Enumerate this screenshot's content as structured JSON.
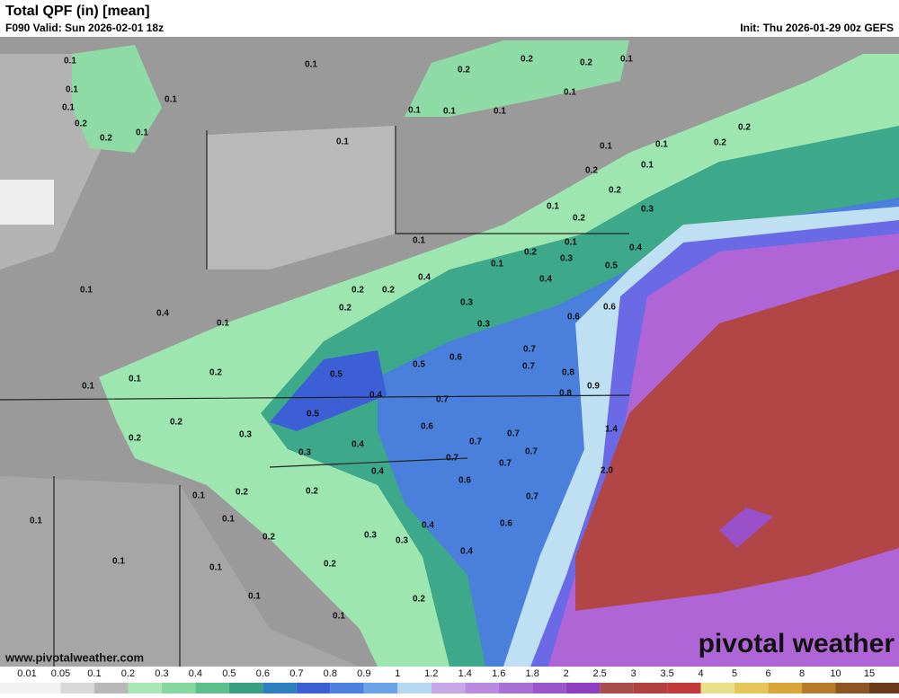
{
  "header": {
    "title": "Total QPF (in) [mean]",
    "valid": "F090 Valid: Sun 2026-02-01 18z",
    "init": "Init: Thu 2026-01-29 00z GEFS"
  },
  "map_labels": [
    "0.1",
    "0.1",
    "0.1",
    "0.2",
    "0.2",
    "0.1",
    "0.2",
    "0.2",
    "0.2",
    "0.1",
    "0.1",
    "0.1",
    "0.1",
    "0.1",
    "0.1",
    "0.1",
    "0.1",
    "0.1",
    "0.1",
    "0.2",
    "0.2",
    "0.2",
    "0.1",
    "0.2",
    "0.1",
    "0.2",
    "0.2",
    "0.3",
    "0.4",
    "0.2",
    "0.4",
    "0.2",
    "0.3",
    "0.3",
    "0.3",
    "0.4",
    "0.5",
    "0.6",
    "0.1",
    "0.1",
    "0.1",
    "0.4",
    "0.2",
    "0.1",
    "0.1",
    "0.2",
    "0.5",
    "0.5",
    "0.6",
    "0.7",
    "0.7",
    "0.8",
    "0.8",
    "0.9",
    "0.4",
    "0.4",
    "0.5",
    "0.7",
    "0.6",
    "0.7",
    "0.7",
    "0.7",
    "0.6",
    "0.7",
    "0.6",
    "0.7",
    "0.7",
    "0.6",
    "1.4",
    "2.0",
    "0.1",
    "0.1",
    "0.2",
    "0.2",
    "0.2",
    "0.3",
    "0.3",
    "0.4",
    "0.3",
    "0.2",
    "0.1",
    "0.1",
    "0.1",
    "0.2",
    "0.1",
    "0.1",
    "0.2",
    "0.1",
    "0.1",
    "0.4",
    "0.2",
    "0.3",
    "0.4"
  ],
  "watermark": "pivotal weather",
  "url": "www.pivotalweather.com",
  "colorbar": {
    "ticks": [
      0.01,
      0.05,
      0.1,
      0.2,
      0.3,
      0.4,
      0.5,
      0.6,
      0.7,
      0.8,
      0.9,
      1,
      1.2,
      1.4,
      1.6,
      1.8,
      2,
      2.5,
      3,
      3.5,
      4,
      5,
      6,
      8,
      10,
      15
    ],
    "colors": [
      "#f2f2f2",
      "#d9d9d9",
      "#b8b8b8",
      "#a8e6b5",
      "#86d6a0",
      "#5fbf8c",
      "#3a9e80",
      "#2f7fbf",
      "#3d5fd6",
      "#4c7fe0",
      "#6aa3e6",
      "#b5d8f0",
      "#c6a8e6",
      "#b98add",
      "#a86fd3",
      "#9a55c9",
      "#8d3fbf",
      "#a84d4d",
      "#b24040",
      "#c23a3a",
      "#e8e08a",
      "#e6c65a",
      "#d9a63a",
      "#b57a2a",
      "#8c5522",
      "#6b3a1a"
    ]
  }
}
